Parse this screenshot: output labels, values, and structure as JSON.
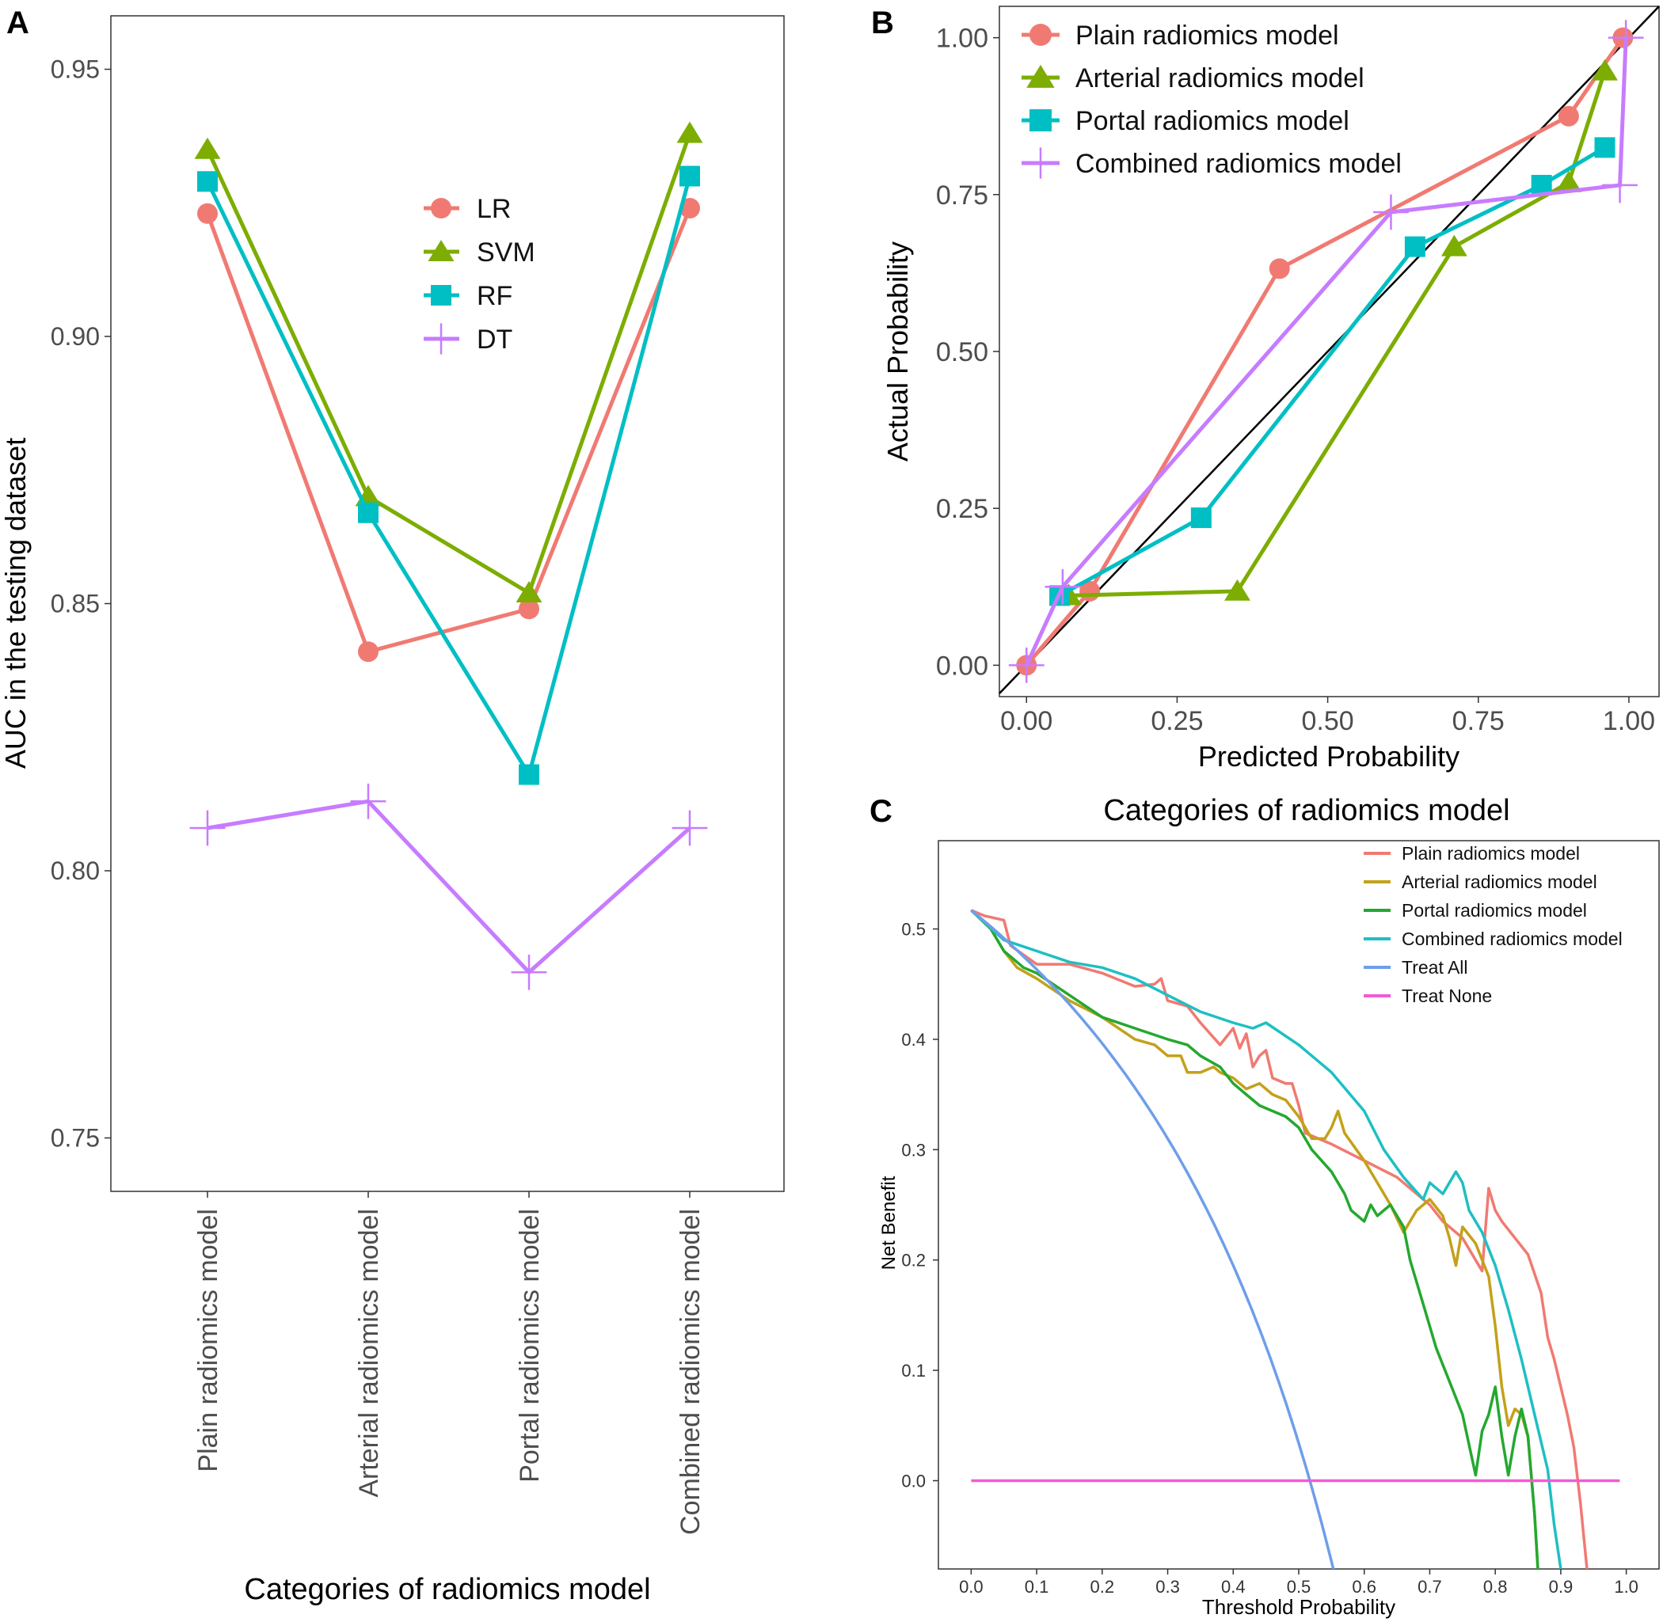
{
  "chart_data": [
    {
      "panel": "A",
      "type": "line",
      "ylabel": "AUC in the testing dataset",
      "xlabel": "Categories of radiomics model",
      "categories": [
        "Plain radiomics model",
        "Arterial radiomics model",
        "Portal radiomics model",
        "Combined radiomics model"
      ],
      "ylim": [
        0.74,
        0.96
      ],
      "yticks": [
        "0.75",
        "0.80",
        "0.85",
        "0.90",
        "0.95"
      ],
      "legend_position": "top-center",
      "series": [
        {
          "name": "LR",
          "marker": "circle",
          "color": "#f07a72",
          "values": [
            0.923,
            0.841,
            0.849,
            0.924
          ]
        },
        {
          "name": "SVM",
          "marker": "triangle",
          "color": "#7cad00",
          "values": [
            0.935,
            0.87,
            0.852,
            0.938
          ]
        },
        {
          "name": "RF",
          "marker": "square",
          "color": "#00bfc4",
          "values": [
            0.929,
            0.867,
            0.818,
            0.93
          ]
        },
        {
          "name": "DT",
          "marker": "plus",
          "color": "#c77cff",
          "values": [
            0.808,
            0.813,
            0.781,
            0.808
          ]
        }
      ]
    },
    {
      "panel": "B",
      "type": "line",
      "xlabel": "Predicted Probability",
      "ylabel": "Actual Probability",
      "xlim": [
        -0.045,
        1.05
      ],
      "ylim": [
        -0.05,
        1.05
      ],
      "ticks": [
        "0.00",
        "0.25",
        "0.50",
        "0.75",
        "1.00"
      ],
      "reference_line": "diagonal",
      "legend_position": "top-left",
      "series": [
        {
          "name": "Plain radiomics model",
          "marker": "circle",
          "color": "#f07a72",
          "points": [
            [
              0.0,
              0.0
            ],
            [
              0.105,
              0.118
            ],
            [
              0.42,
              0.632
            ],
            [
              0.9,
              0.875
            ],
            [
              0.99,
              1.0
            ]
          ]
        },
        {
          "name": "Arterial radiomics model",
          "marker": "triangle",
          "color": "#7cad00",
          "points": [
            [
              0.07,
              0.111
            ],
            [
              0.35,
              0.118
            ],
            [
              0.71,
              0.667
            ],
            [
              0.9,
              0.769
            ],
            [
              0.96,
              0.947
            ]
          ]
        },
        {
          "name": "Portal radiomics model",
          "marker": "square",
          "color": "#00bfc4",
          "points": [
            [
              0.055,
              0.111
            ],
            [
              0.29,
              0.235
            ],
            [
              0.645,
              0.667
            ],
            [
              0.855,
              0.765
            ],
            [
              0.96,
              0.825
            ]
          ]
        },
        {
          "name": "Combined radiomics model",
          "marker": "plus",
          "color": "#c77cff",
          "points": [
            [
              0.0,
              0.0
            ],
            [
              0.06,
              0.125
            ],
            [
              0.605,
              0.722
            ],
            [
              0.985,
              0.765
            ],
            [
              0.995,
              1.0
            ]
          ]
        }
      ]
    },
    {
      "panel": "C",
      "type": "line",
      "title": "Categories of radiomics model",
      "xlabel": "Threshold Probability",
      "ylabel": "Net Benefit",
      "xlim": [
        -0.05,
        1.05
      ],
      "ylim": [
        -0.08,
        0.58
      ],
      "xticks": [
        "0.0",
        "0.1",
        "0.2",
        "0.3",
        "0.4",
        "0.5",
        "0.6",
        "0.7",
        "0.8",
        "0.9",
        "1.0"
      ],
      "yticks": [
        "0.0",
        "0.1",
        "0.2",
        "0.3",
        "0.4",
        "0.5"
      ],
      "legend_position": "top-right",
      "series": [
        {
          "name": "Plain radiomics model",
          "color": "#f07a72",
          "points": [
            [
              0.0,
              0.517
            ],
            [
              0.02,
              0.512
            ],
            [
              0.05,
              0.508
            ],
            [
              0.06,
              0.485
            ],
            [
              0.1,
              0.468
            ],
            [
              0.15,
              0.468
            ],
            [
              0.2,
              0.46
            ],
            [
              0.25,
              0.448
            ],
            [
              0.28,
              0.45
            ],
            [
              0.29,
              0.455
            ],
            [
              0.3,
              0.435
            ],
            [
              0.33,
              0.43
            ],
            [
              0.35,
              0.415
            ],
            [
              0.38,
              0.395
            ],
            [
              0.4,
              0.41
            ],
            [
              0.41,
              0.392
            ],
            [
              0.42,
              0.405
            ],
            [
              0.43,
              0.375
            ],
            [
              0.44,
              0.385
            ],
            [
              0.45,
              0.39
            ],
            [
              0.46,
              0.365
            ],
            [
              0.48,
              0.36
            ],
            [
              0.49,
              0.36
            ],
            [
              0.5,
              0.34
            ],
            [
              0.51,
              0.315
            ],
            [
              0.55,
              0.305
            ],
            [
              0.6,
              0.29
            ],
            [
              0.65,
              0.275
            ],
            [
              0.7,
              0.25
            ],
            [
              0.72,
              0.235
            ],
            [
              0.75,
              0.22
            ],
            [
              0.78,
              0.19
            ],
            [
              0.79,
              0.265
            ],
            [
              0.8,
              0.245
            ],
            [
              0.81,
              0.235
            ],
            [
              0.83,
              0.22
            ],
            [
              0.85,
              0.205
            ],
            [
              0.87,
              0.17
            ],
            [
              0.88,
              0.13
            ],
            [
              0.89,
              0.11
            ],
            [
              0.9,
              0.085
            ],
            [
              0.91,
              0.06
            ],
            [
              0.92,
              0.03
            ],
            [
              0.93,
              -0.02
            ],
            [
              0.94,
              -0.08
            ]
          ]
        },
        {
          "name": "Arterial radiomics model",
          "color": "#c3a11a",
          "points": [
            [
              0.0,
              0.517
            ],
            [
              0.03,
              0.5
            ],
            [
              0.05,
              0.48
            ],
            [
              0.07,
              0.465
            ],
            [
              0.1,
              0.455
            ],
            [
              0.15,
              0.435
            ],
            [
              0.2,
              0.42
            ],
            [
              0.25,
              0.4
            ],
            [
              0.28,
              0.395
            ],
            [
              0.3,
              0.385
            ],
            [
              0.32,
              0.385
            ],
            [
              0.33,
              0.37
            ],
            [
              0.35,
              0.37
            ],
            [
              0.37,
              0.375
            ],
            [
              0.38,
              0.37
            ],
            [
              0.4,
              0.365
            ],
            [
              0.42,
              0.355
            ],
            [
              0.44,
              0.36
            ],
            [
              0.46,
              0.35
            ],
            [
              0.48,
              0.345
            ],
            [
              0.5,
              0.33
            ],
            [
              0.52,
              0.31
            ],
            [
              0.54,
              0.31
            ],
            [
              0.55,
              0.32
            ],
            [
              0.56,
              0.335
            ],
            [
              0.57,
              0.315
            ],
            [
              0.6,
              0.29
            ],
            [
              0.62,
              0.27
            ],
            [
              0.64,
              0.25
            ],
            [
              0.66,
              0.225
            ],
            [
              0.68,
              0.245
            ],
            [
              0.69,
              0.25
            ],
            [
              0.7,
              0.255
            ],
            [
              0.72,
              0.24
            ],
            [
              0.73,
              0.22
            ],
            [
              0.74,
              0.195
            ],
            [
              0.75,
              0.23
            ],
            [
              0.77,
              0.215
            ],
            [
              0.79,
              0.185
            ],
            [
              0.8,
              0.14
            ],
            [
              0.81,
              0.085
            ],
            [
              0.82,
              0.05
            ],
            [
              0.83,
              0.065
            ],
            [
              0.84,
              0.06
            ],
            [
              0.85,
              0.04
            ],
            [
              0.86,
              -0.03
            ],
            [
              0.865,
              -0.08
            ]
          ]
        },
        {
          "name": "Portal radiomics model",
          "color": "#24a830",
          "points": [
            [
              0.0,
              0.517
            ],
            [
              0.03,
              0.5
            ],
            [
              0.05,
              0.48
            ],
            [
              0.08,
              0.465
            ],
            [
              0.1,
              0.46
            ],
            [
              0.15,
              0.44
            ],
            [
              0.2,
              0.42
            ],
            [
              0.25,
              0.41
            ],
            [
              0.3,
              0.4
            ],
            [
              0.33,
              0.395
            ],
            [
              0.35,
              0.385
            ],
            [
              0.38,
              0.375
            ],
            [
              0.4,
              0.36
            ],
            [
              0.42,
              0.35
            ],
            [
              0.44,
              0.34
            ],
            [
              0.46,
              0.335
            ],
            [
              0.48,
              0.33
            ],
            [
              0.5,
              0.32
            ],
            [
              0.52,
              0.3
            ],
            [
              0.55,
              0.28
            ],
            [
              0.57,
              0.26
            ],
            [
              0.58,
              0.245
            ],
            [
              0.6,
              0.235
            ],
            [
              0.61,
              0.25
            ],
            [
              0.62,
              0.24
            ],
            [
              0.64,
              0.25
            ],
            [
              0.66,
              0.23
            ],
            [
              0.67,
              0.2
            ],
            [
              0.69,
              0.16
            ],
            [
              0.71,
              0.12
            ],
            [
              0.73,
              0.09
            ],
            [
              0.75,
              0.06
            ],
            [
              0.77,
              0.005
            ],
            [
              0.78,
              0.045
            ],
            [
              0.79,
              0.06
            ],
            [
              0.8,
              0.085
            ],
            [
              0.81,
              0.04
            ],
            [
              0.82,
              0.005
            ],
            [
              0.83,
              0.04
            ],
            [
              0.84,
              0.065
            ],
            [
              0.85,
              0.04
            ],
            [
              0.86,
              -0.03
            ],
            [
              0.865,
              -0.08
            ]
          ]
        },
        {
          "name": "Combined radiomics model",
          "color": "#1ebfc3",
          "points": [
            [
              0.0,
              0.517
            ],
            [
              0.05,
              0.49
            ],
            [
              0.1,
              0.48
            ],
            [
              0.15,
              0.47
            ],
            [
              0.2,
              0.465
            ],
            [
              0.25,
              0.455
            ],
            [
              0.3,
              0.44
            ],
            [
              0.35,
              0.425
            ],
            [
              0.4,
              0.415
            ],
            [
              0.43,
              0.41
            ],
            [
              0.45,
              0.415
            ],
            [
              0.5,
              0.395
            ],
            [
              0.55,
              0.37
            ],
            [
              0.6,
              0.335
            ],
            [
              0.63,
              0.3
            ],
            [
              0.66,
              0.275
            ],
            [
              0.69,
              0.255
            ],
            [
              0.7,
              0.27
            ],
            [
              0.72,
              0.26
            ],
            [
              0.74,
              0.28
            ],
            [
              0.75,
              0.27
            ],
            [
              0.76,
              0.245
            ],
            [
              0.78,
              0.225
            ],
            [
              0.8,
              0.195
            ],
            [
              0.82,
              0.155
            ],
            [
              0.84,
              0.11
            ],
            [
              0.86,
              0.06
            ],
            [
              0.88,
              0.01
            ],
            [
              0.89,
              -0.04
            ],
            [
              0.9,
              -0.08
            ]
          ]
        },
        {
          "name": "Treat All",
          "color": "#6e9eea",
          "function": "treat_all",
          "prevalence": 0.517
        },
        {
          "name": "Treat None",
          "color": "#f25ad4",
          "points": [
            [
              0.0,
              0.0
            ],
            [
              0.99,
              0.0
            ]
          ]
        }
      ]
    }
  ],
  "panel_labels": {
    "a": "A",
    "b": "B",
    "c": "C"
  }
}
